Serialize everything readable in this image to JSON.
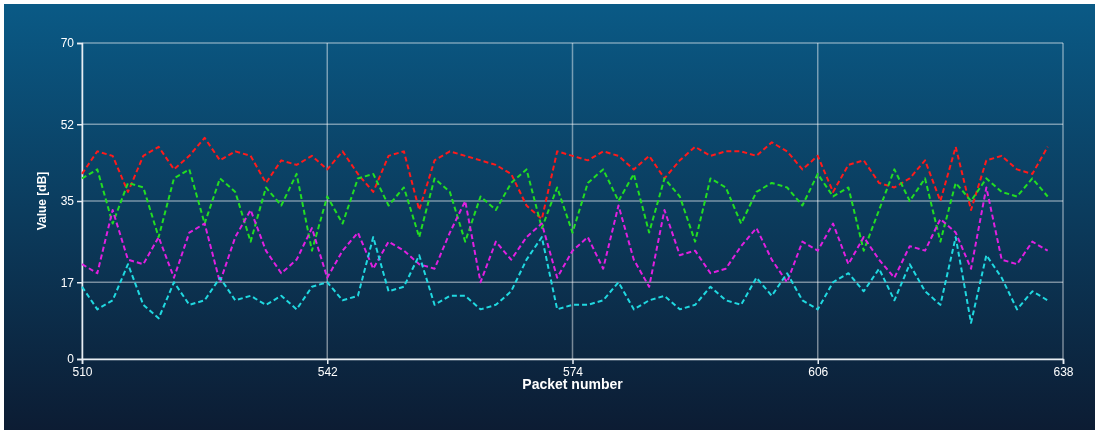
{
  "chart_data": {
    "type": "line",
    "xlabel": "Packet number",
    "ylabel": "Value [dB]",
    "x": [
      510,
      512,
      514,
      516,
      518,
      520,
      522,
      524,
      526,
      528,
      530,
      532,
      534,
      536,
      538,
      540,
      542,
      544,
      546,
      548,
      550,
      552,
      554,
      556,
      558,
      560,
      562,
      564,
      566,
      568,
      570,
      572,
      574,
      576,
      578,
      580,
      582,
      584,
      586,
      588,
      590,
      592,
      594,
      596,
      598,
      600,
      602,
      604,
      606,
      608,
      610,
      612,
      614,
      616,
      618,
      620,
      622,
      624,
      626,
      628,
      630,
      632,
      634,
      636
    ],
    "xlim": [
      510,
      638
    ],
    "xticks": [
      510,
      542,
      574,
      606,
      638
    ],
    "ylim": [
      0,
      70
    ],
    "yticks": [
      0,
      17,
      35,
      52,
      70
    ],
    "grid": true,
    "line_style": "dashed",
    "marker": "none",
    "series": [
      {
        "color": "#ff1a1a",
        "values": [
          41,
          46,
          45,
          37,
          45,
          47,
          42,
          45,
          49,
          44,
          46,
          45,
          39,
          44,
          43,
          45,
          42,
          46,
          41,
          37,
          45,
          46,
          33,
          44,
          46,
          45,
          44,
          43,
          41,
          34,
          31,
          46,
          45,
          44,
          46,
          45,
          42,
          45,
          40,
          44,
          47,
          45,
          46,
          46,
          45,
          48,
          46,
          42,
          45,
          37,
          43,
          44,
          39,
          38,
          40,
          44,
          35,
          47,
          33,
          44,
          45,
          42,
          41,
          47
        ]
      },
      {
        "color": "#22dd22",
        "values": [
          40,
          42,
          30,
          39,
          38,
          27,
          40,
          42,
          30,
          40,
          37,
          26,
          38,
          34,
          41,
          24,
          36,
          30,
          40,
          41,
          34,
          38,
          27,
          40,
          37,
          26,
          36,
          33,
          39,
          42,
          29,
          38,
          28,
          39,
          42,
          35,
          41,
          28,
          40,
          36,
          26,
          40,
          38,
          30,
          37,
          39,
          38,
          34,
          41,
          36,
          38,
          24,
          33,
          42,
          35,
          40,
          26,
          39,
          35,
          40,
          37,
          36,
          40,
          36
        ]
      },
      {
        "color": "#e020e0",
        "values": [
          21,
          19,
          33,
          22,
          21,
          27,
          18,
          28,
          30,
          17,
          27,
          33,
          24,
          19,
          22,
          29,
          18,
          24,
          28,
          20,
          26,
          24,
          21,
          20,
          28,
          35,
          17,
          26,
          22,
          27,
          30,
          18,
          24,
          27,
          20,
          34,
          22,
          16,
          33,
          23,
          24,
          19,
          20,
          25,
          29,
          22,
          17,
          26,
          24,
          30,
          21,
          27,
          22,
          18,
          25,
          24,
          31,
          28,
          20,
          38,
          22,
          21,
          26,
          24
        ]
      },
      {
        "color": "#20d8e0",
        "values": [
          16,
          11,
          13,
          21,
          12,
          9,
          17,
          12,
          13,
          18,
          13,
          14,
          12,
          14,
          11,
          16,
          17,
          13,
          14,
          27,
          15,
          16,
          23,
          12,
          14,
          14,
          11,
          12,
          15,
          22,
          27,
          11,
          12,
          12,
          13,
          17,
          11,
          13,
          14,
          11,
          12,
          16,
          13,
          12,
          18,
          14,
          19,
          13,
          11,
          17,
          19,
          15,
          20,
          13,
          21,
          15,
          12,
          27,
          8,
          23,
          18,
          11,
          15,
          13
        ]
      }
    ]
  }
}
